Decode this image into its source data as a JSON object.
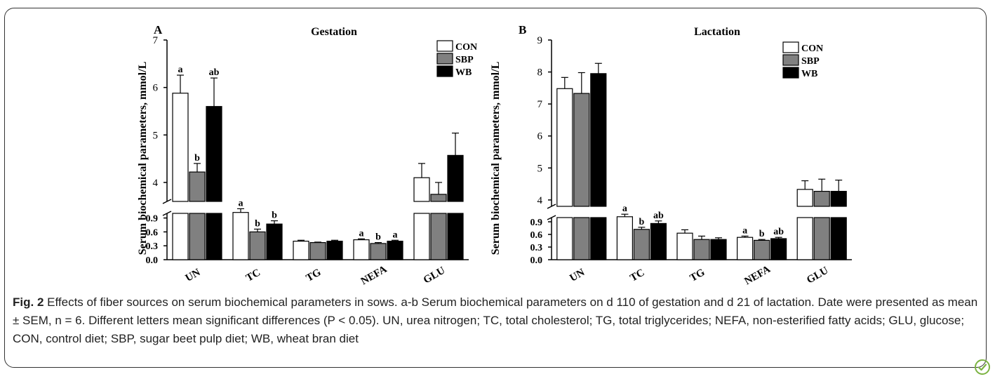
{
  "caption": {
    "fig_label": "Fig. 2",
    "text": "Effects of fiber sources on serum biochemical parameters in sows. a-b Serum biochemical parameters on d 110 of gestation and d 21 of lactation. Date were presented as mean ± SEM, n = 6. Different letters mean significant differences (P < 0.05). UN, urea nitrogen; TC, total cholesterol; TG, total triglycerides; NEFA, non-esterified fatty acids; GLU, glucose; CON, control diet; SBP, sugar beet pulp diet; WB, wheat bran diet"
  },
  "badge_icon": "leaf-check-icon",
  "chart_data": [
    {
      "type": "bar",
      "panel_letter": "A",
      "title": "Gestation",
      "ylabel": "Serum biochemical parameters, mmol/L",
      "xlabel": "",
      "categories": [
        "UN",
        "TC",
        "TG",
        "NEFA",
        "GLU"
      ],
      "axis_break": true,
      "ylim_lower": [
        0,
        1.0
      ],
      "yticks_lower": [
        "0.0",
        "0.3",
        "0.6",
        "0.9"
      ],
      "ylim_upper": [
        3.6,
        7
      ],
      "yticks_upper": [
        "4",
        "5",
        "6",
        "7"
      ],
      "legend": [
        "CON",
        "SBP",
        "WB"
      ],
      "legend_position": "top-right",
      "colors": [
        "#ffffff",
        "#808080",
        "#000000"
      ],
      "series": [
        {
          "name": "CON",
          "values": [
            5.88,
            1.02,
            0.4,
            0.43,
            4.1
          ],
          "errors": [
            0.38,
            0.08,
            0.02,
            0.02,
            0.3
          ],
          "letters": [
            "a",
            "a",
            "",
            "a",
            ""
          ]
        },
        {
          "name": "SBP",
          "values": [
            4.22,
            0.6,
            0.37,
            0.35,
            3.75
          ],
          "errors": [
            0.18,
            0.06,
            0.01,
            0.02,
            0.25
          ],
          "letters": [
            "b",
            "b",
            "",
            "b",
            ""
          ]
        },
        {
          "name": "WB",
          "values": [
            5.6,
            0.77,
            0.4,
            0.4,
            4.57
          ],
          "errors": [
            0.6,
            0.07,
            0.02,
            0.02,
            0.47
          ],
          "letters": [
            "ab",
            "b",
            "",
            "a",
            ""
          ]
        }
      ]
    },
    {
      "type": "bar",
      "panel_letter": "B",
      "title": "Lactation",
      "ylabel": "Serum biochemical parameters, mmol/L",
      "xlabel": "",
      "categories": [
        "UN",
        "TC",
        "TG",
        "NEFA",
        "GLU"
      ],
      "axis_break": true,
      "ylim_lower": [
        0,
        1.0
      ],
      "yticks_lower": [
        "0.0",
        "0.3",
        "0.6",
        "0.9"
      ],
      "ylim_upper": [
        3.8,
        9
      ],
      "yticks_upper": [
        "4",
        "5",
        "6",
        "7",
        "8",
        "9"
      ],
      "legend": [
        "CON",
        "SBP",
        "WB"
      ],
      "legend_position": "top-right",
      "colors": [
        "#ffffff",
        "#808080",
        "#000000"
      ],
      "series": [
        {
          "name": "CON",
          "values": [
            7.48,
            1.02,
            0.63,
            0.53,
            4.33
          ],
          "errors": [
            0.35,
            0.06,
            0.08,
            0.03,
            0.27
          ],
          "letters": [
            "",
            "a",
            "",
            "a",
            ""
          ]
        },
        {
          "name": "SBP",
          "values": [
            7.33,
            0.72,
            0.48,
            0.46,
            4.27
          ],
          "errors": [
            0.65,
            0.05,
            0.08,
            0.02,
            0.38
          ],
          "letters": [
            "",
            "b",
            "",
            "b",
            ""
          ]
        },
        {
          "name": "WB",
          "values": [
            7.95,
            0.86,
            0.48,
            0.5,
            4.27
          ],
          "errors": [
            0.32,
            0.06,
            0.04,
            0.03,
            0.35
          ],
          "letters": [
            "",
            "ab",
            "",
            "ab",
            ""
          ]
        }
      ]
    }
  ]
}
